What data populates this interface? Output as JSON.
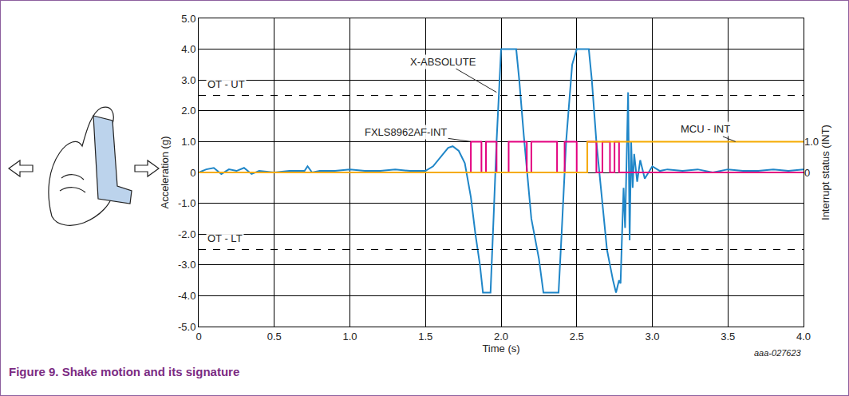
{
  "chart_data": {
    "type": "line",
    "caption": "Figure 9. Shake motion and its signature",
    "source_label": "aaa-027623",
    "x_label": "Time (s)",
    "y_label": "Acceleration (g)",
    "y2_label": "Interrupt status (INT)",
    "xlim": [
      0,
      4
    ],
    "xticks": [
      0,
      0.5,
      {
        "value": 1,
        "label": "1.0"
      },
      1.5,
      {
        "value": 2,
        "label": "2.0"
      },
      2.5,
      {
        "value": 3,
        "label": "3.0"
      },
      3.5,
      {
        "value": 4,
        "label": "4.0"
      }
    ],
    "ylim": [
      -5,
      5
    ],
    "yticks": [
      {
        "value": -5,
        "label": "-5.0"
      },
      {
        "value": -4,
        "label": "-4.0"
      },
      {
        "value": -3,
        "label": "-3.0"
      },
      {
        "value": -2,
        "label": "-2.0"
      },
      {
        "value": -1,
        "label": "-1.0"
      },
      0,
      {
        "value": 1,
        "label": "1.0"
      },
      {
        "value": 2,
        "label": "2.0"
      },
      {
        "value": 3,
        "label": "3.0"
      },
      {
        "value": 4,
        "label": "4.0"
      },
      {
        "value": 5,
        "label": "5.0"
      }
    ],
    "y2lim": [
      -5,
      5
    ],
    "y2ticks": [
      0,
      {
        "value": 1,
        "label": "1.0"
      }
    ],
    "grid": true,
    "series": [
      {
        "name": "X-ABSOLUTE",
        "color": "#1f86c8",
        "line_style": "solid",
        "x": [
          0,
          0.05,
          0.1,
          0.15,
          0.2,
          0.25,
          0.3,
          0.35,
          0.4,
          0.5,
          0.6,
          0.7,
          0.72,
          0.75,
          0.8,
          0.9,
          1.0,
          1.1,
          1.2,
          1.3,
          1.4,
          1.5,
          1.55,
          1.6,
          1.65,
          1.68,
          1.72,
          1.76,
          1.8,
          1.83,
          1.86,
          1.88,
          1.93,
          1.95,
          1.97,
          2.0,
          2.1,
          2.12,
          2.15,
          2.2,
          2.25,
          2.28,
          2.38,
          2.4,
          2.43,
          2.47,
          2.5,
          2.58,
          2.6,
          2.63,
          2.67,
          2.7,
          2.74,
          2.76,
          2.78,
          2.79,
          2.8,
          2.81,
          2.82,
          2.83,
          2.84,
          2.85,
          2.86,
          2.87,
          2.88,
          2.9,
          2.92,
          2.95,
          3.0,
          3.05,
          3.1,
          3.2,
          3.3,
          3.4,
          3.5,
          3.6,
          3.7,
          3.8,
          3.9,
          4.0
        ],
        "values": [
          0,
          0.1,
          0.15,
          -0.05,
          0.1,
          0.05,
          0.15,
          -0.05,
          0.05,
          0,
          0.05,
          0.05,
          0.2,
          0,
          0.05,
          0.05,
          0.1,
          0.05,
          0.05,
          0.1,
          0.05,
          0.05,
          0.2,
          0.5,
          0.8,
          0.85,
          0.7,
          0.3,
          -0.8,
          -2.0,
          -3.0,
          -3.9,
          -3.9,
          -1.5,
          1.0,
          4.0,
          4.0,
          3.0,
          1.2,
          -1.5,
          -2.8,
          -3.9,
          -3.9,
          -2.0,
          1.0,
          3.5,
          4.0,
          4.0,
          3.0,
          1.0,
          -1.0,
          -2.5,
          -3.5,
          -3.9,
          -3.5,
          -3.6,
          -2.0,
          -0.5,
          -1.8,
          0.8,
          2.6,
          -2.2,
          1.0,
          -0.5,
          0.6,
          -0.3,
          0.4,
          -0.2,
          0.2,
          0.05,
          0.1,
          0.05,
          0.1,
          0.0,
          0.1,
          0.05,
          0.05,
          0.1,
          0.05,
          0.1
        ]
      },
      {
        "name": "FXLS8962AF-INT",
        "color": "#e3007f",
        "line_style": "step",
        "axis": "y2",
        "x": [
          0,
          1.8,
          1.87,
          1.9,
          1.97,
          2.05,
          2.17,
          2.2,
          2.37,
          2.42,
          2.5,
          2.57,
          2.63,
          2.67,
          2.72,
          2.75,
          2.78,
          4.0
        ],
        "values": [
          0,
          1,
          0,
          1,
          0,
          1,
          0,
          1,
          0,
          1,
          0,
          1,
          0,
          1,
          0,
          1,
          0,
          0
        ]
      },
      {
        "name": "MCU - INT",
        "color": "#f5ab00",
        "line_style": "step",
        "axis": "y2",
        "x": [
          0,
          2.57,
          4.0
        ],
        "values": [
          0,
          1,
          1
        ]
      },
      {
        "name": "OT - UT",
        "color": "#000000",
        "line_style": "dash",
        "x": [
          0,
          4.0
        ],
        "values": [
          2.5,
          2.5
        ]
      },
      {
        "name": "OT - LT",
        "color": "#000000",
        "line_style": "dash",
        "x": [
          0,
          4.0
        ],
        "values": [
          -2.5,
          -2.5
        ]
      }
    ]
  }
}
